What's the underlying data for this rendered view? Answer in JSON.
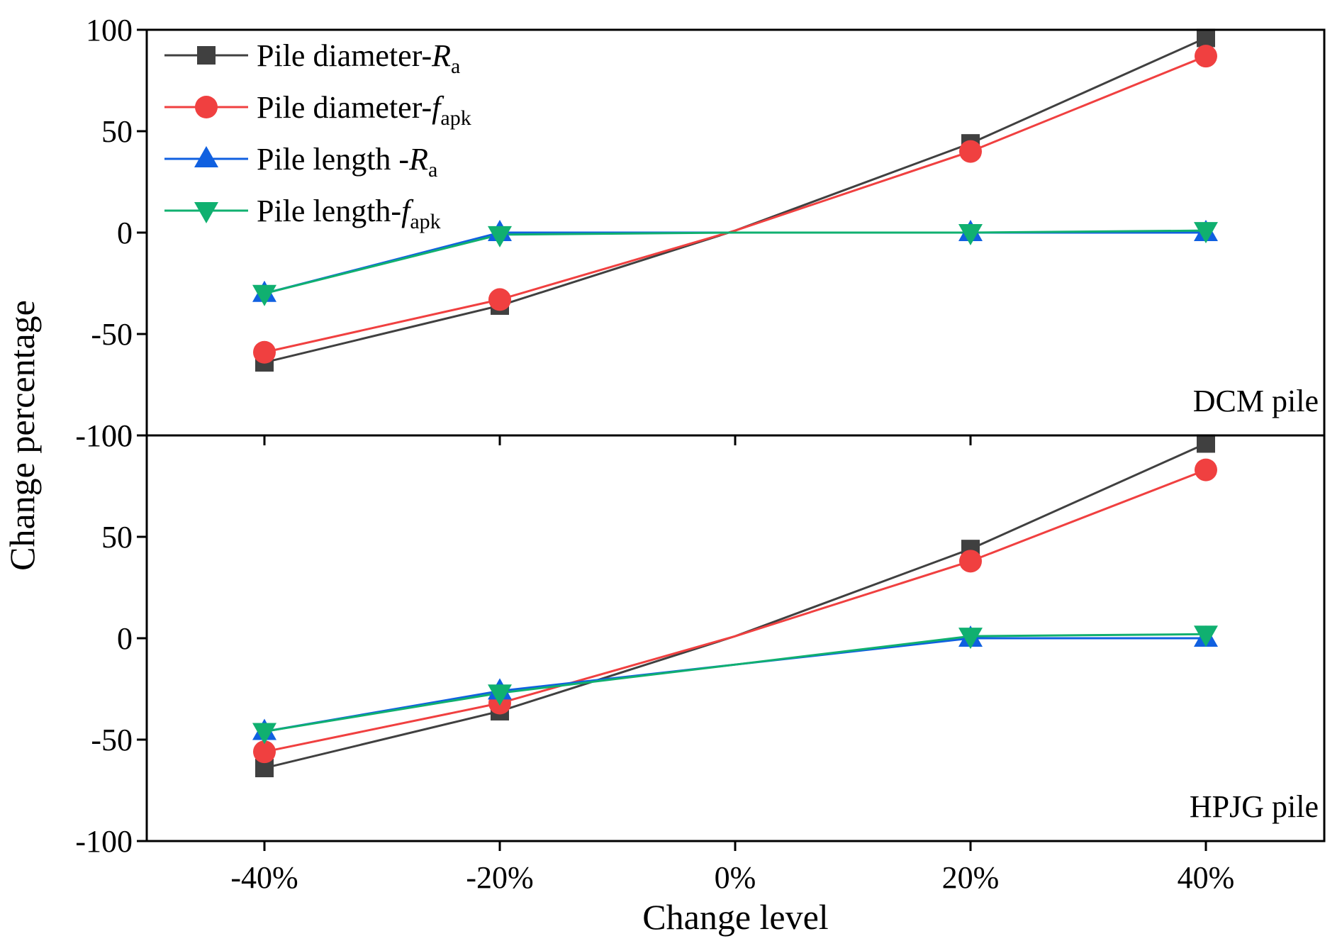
{
  "chart_data": {
    "type": "line",
    "categories": [
      "-40%",
      "-20%",
      "0%",
      "20%",
      "40%"
    ],
    "xlabel": "Change level",
    "ylabel": "Change percentage",
    "ylim": [
      -100,
      100
    ],
    "yticks": [
      -100,
      -50,
      0,
      50,
      100
    ],
    "legend": {
      "placement": "top-left",
      "entries": [
        {
          "key": "pdRa",
          "main": "Pile diameter-",
          "italic": "R",
          "sub": "a"
        },
        {
          "key": "pdFapk",
          "main": "Pile diameter-",
          "italic": "f",
          "sub": "apk"
        },
        {
          "key": "plRa",
          "main": "Pile length -",
          "italic": "R",
          "sub": "a"
        },
        {
          "key": "plFapk",
          "main": "Pile length-",
          "italic": "f",
          "sub": "apk"
        }
      ]
    },
    "styles": {
      "pdRa": {
        "color": "#404040",
        "marker": "square"
      },
      "pdFapk": {
        "color": "#f04040",
        "marker": "circle"
      },
      "plRa": {
        "color": "#1060e0",
        "marker": "triangle-up"
      },
      "plFapk": {
        "color": "#10b070",
        "marker": "triangle-down"
      }
    },
    "panels": [
      {
        "label": "DCM pile",
        "series": [
          {
            "key": "pdRa",
            "values": [
              -64,
              -36,
              1,
              44,
              96
            ]
          },
          {
            "key": "pdFapk",
            "values": [
              -59,
              -33,
              1,
              40,
              87
            ]
          },
          {
            "key": "plRa",
            "values": [
              -30,
              0,
              0,
              0,
              0
            ]
          },
          {
            "key": "plFapk",
            "values": [
              -30,
              -1,
              0,
              0,
              1
            ]
          }
        ]
      },
      {
        "label": "HPJG pile",
        "series": [
          {
            "key": "pdRa",
            "values": [
              -64,
              -36,
              1,
              44,
              96
            ]
          },
          {
            "key": "pdFapk",
            "values": [
              -56,
              -32,
              1,
              38,
              83
            ]
          },
          {
            "key": "plRa",
            "values": [
              -46,
              -26,
              -13,
              0,
              0
            ]
          },
          {
            "key": "plFapk",
            "values": [
              -46,
              -27,
              -13,
              1,
              2
            ]
          }
        ]
      }
    ]
  }
}
